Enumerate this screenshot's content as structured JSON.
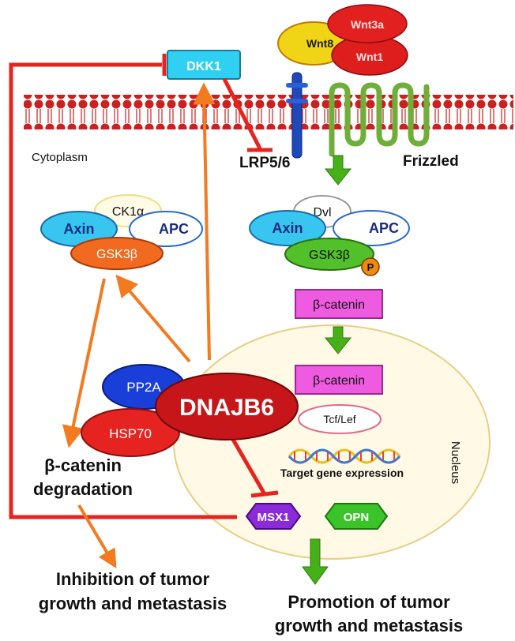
{
  "labels": {
    "dkk1": "DKK1",
    "wnt8": "Wnt8",
    "wnt3a": "Wnt3a",
    "wnt1": "Wnt1",
    "lrp": "LRP5/6",
    "frizzled": "Frizzled",
    "cytoplasm": "Cytoplasm",
    "ck1a": "CK1α",
    "axin": "Axin",
    "apc": "APC",
    "gsk3b": "GSK3β",
    "dvl": "Dvl",
    "p": "P",
    "bcat": "β-catenin",
    "tcf": "Tcf/Lef",
    "target": "Target gene expression",
    "nucleus": "Nucleus",
    "pp2a": "PP2A",
    "dnajb6": "DNAJB6",
    "hsp70": "HSP70",
    "degradation_1": "β-catenin",
    "degradation_2": "degradation",
    "msx1": "MSX1",
    "opn": "OPN",
    "inhibit_1": "Inhibition of tumor",
    "inhibit_2": "growth and metastasis",
    "promo_1": "Promotion of tumor",
    "promo_2": "growth and metastasis"
  },
  "colors": {
    "red": "#e8231e",
    "orange": "#f47a20",
    "green": "#46b019",
    "magenta": "#ee5be0",
    "cyan": "#2fd0f0",
    "nucleus_fill": "#fff9e6",
    "nucleus_stroke": "#e8cf84"
  }
}
